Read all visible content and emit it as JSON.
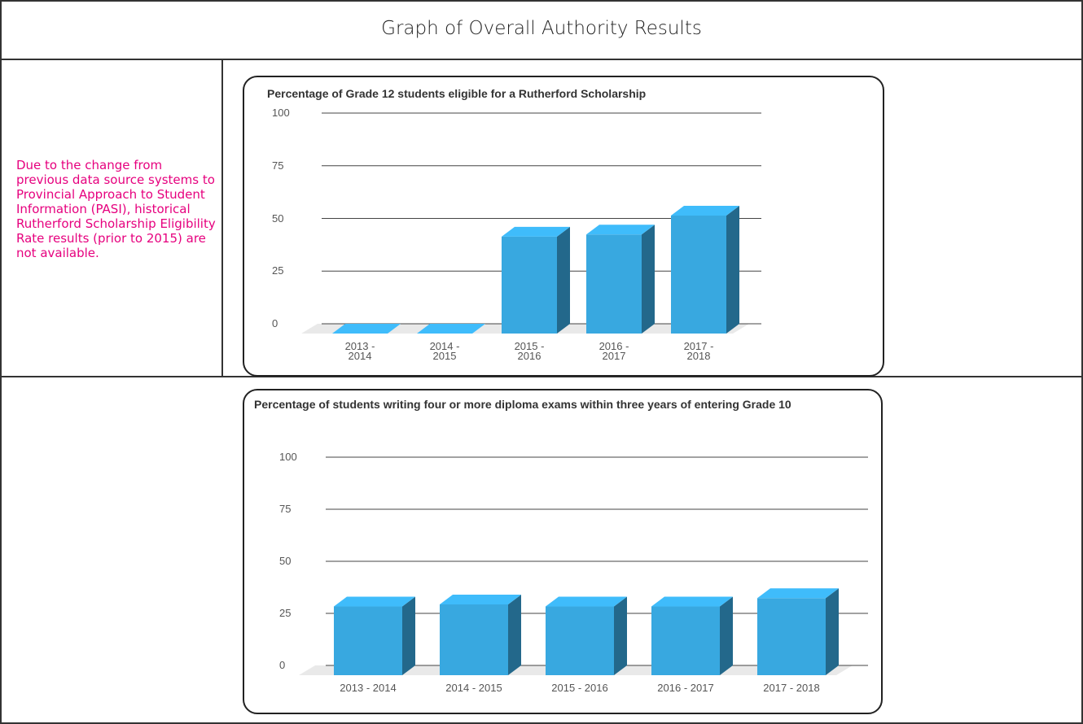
{
  "title": "Graph of Overall Authority Results",
  "note": "Due to the change from previous data source systems to Provincial Approach to Student Information (PASI), historical Rutherford Scholarship Eligibility Rate results (prior to 2015) are not available.",
  "chart_data": [
    {
      "type": "bar",
      "title": "Percentage of Grade 12 students eligible for a Rutherford Scholarship",
      "categories": [
        "2013 - 2014",
        "2014 - 2015",
        "2015 - 2016",
        "2016 - 2017",
        "2017 - 2018"
      ],
      "values": [
        0,
        0,
        46,
        47,
        56
      ],
      "color": "#38a8e0",
      "ylim": [
        0,
        100
      ],
      "yticks": [
        0,
        25,
        50,
        75,
        100
      ],
      "grid": true
    },
    {
      "type": "bar",
      "title": "Percentage of students writing four or more diploma exams within three years of entering Grade 10",
      "categories": [
        "2013 - 2014",
        "2014 - 2015",
        "2015 - 2016",
        "2016 - 2017",
        "2017 - 2018"
      ],
      "values": [
        33,
        34,
        33,
        33,
        37
      ],
      "color": "#38a8e0",
      "ylim": [
        0,
        100
      ],
      "yticks": [
        0,
        25,
        50,
        75,
        100
      ],
      "grid": true
    }
  ]
}
